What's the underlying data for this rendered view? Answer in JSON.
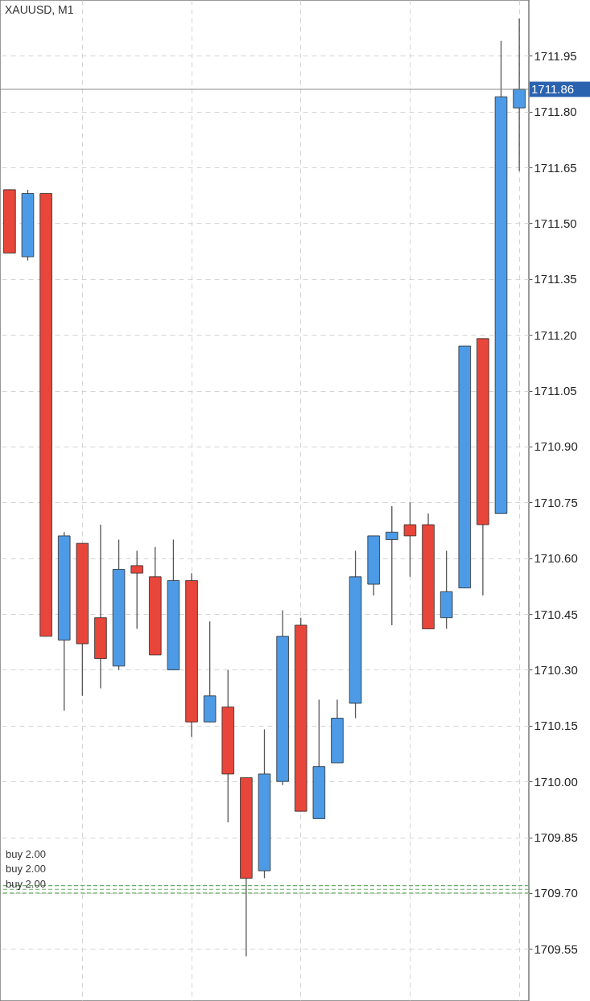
{
  "chart_data": {
    "type": "candlestick",
    "title": "XAUUSD, M1",
    "categories": [
      null,
      null,
      null,
      null,
      null,
      null,
      null,
      null,
      null,
      null,
      null,
      null,
      null,
      null,
      null,
      null,
      null,
      null,
      null,
      null,
      null,
      null,
      null,
      null,
      null,
      null,
      null,
      null,
      null
    ],
    "ohlc": [
      [
        1711.59,
        1711.59,
        1711.42,
        1711.42
      ],
      [
        1711.41,
        1711.59,
        1711.4,
        1711.58
      ],
      [
        1711.58,
        1711.58,
        1710.39,
        1710.39
      ],
      [
        1710.38,
        1710.67,
        1710.19,
        1710.66
      ],
      [
        1710.64,
        1710.64,
        1710.23,
        1710.37
      ],
      [
        1710.44,
        1710.69,
        1710.25,
        1710.33
      ],
      [
        1710.31,
        1710.65,
        1710.3,
        1710.57
      ],
      [
        1710.58,
        1710.62,
        1710.41,
        1710.56
      ],
      [
        1710.55,
        1710.63,
        1710.34,
        1710.34
      ],
      [
        1710.3,
        1710.65,
        1710.3,
        1710.54
      ],
      [
        1710.54,
        1710.56,
        1710.12,
        1710.16
      ],
      [
        1710.16,
        1710.43,
        1710.16,
        1710.23
      ],
      [
        1710.2,
        1710.3,
        1709.89,
        1710.02
      ],
      [
        1710.01,
        1710.01,
        1709.53,
        1709.74
      ],
      [
        1709.76,
        1710.14,
        1709.74,
        1710.02
      ],
      [
        1710.0,
        1710.46,
        1709.99,
        1710.39
      ],
      [
        1710.42,
        1710.44,
        1709.92,
        1709.92
      ],
      [
        1709.9,
        1710.22,
        1709.9,
        1710.04
      ],
      [
        1710.05,
        1710.22,
        1710.05,
        1710.17
      ],
      [
        1710.21,
        1710.62,
        1710.17,
        1710.55
      ],
      [
        1710.53,
        1710.66,
        1710.5,
        1710.66
      ],
      [
        1710.65,
        1710.74,
        1710.42,
        1710.67
      ],
      [
        1710.69,
        1710.75,
        1710.55,
        1710.66
      ],
      [
        1710.69,
        1710.72,
        1710.41,
        1710.41
      ],
      [
        1710.44,
        1710.62,
        1710.41,
        1710.51
      ],
      [
        1710.52,
        1711.17,
        1710.52,
        1711.17
      ],
      [
        1711.19,
        1711.19,
        1710.5,
        1710.69
      ],
      [
        1710.72,
        1711.99,
        1710.72,
        1711.84
      ],
      [
        1711.81,
        1712.05,
        1711.64,
        1711.86
      ]
    ],
    "colors": [
      "#e8463a",
      "#4d9be6",
      "#e8463a",
      "#4d9be6",
      "#e8463a",
      "#e8463a",
      "#4d9be6",
      "#e8463a",
      "#e8463a",
      "#4d9be6",
      "#e8463a",
      "#4d9be6",
      "#e8463a",
      "#e8463a",
      "#4d9be6",
      "#4d9be6",
      "#e8463a",
      "#4d9be6",
      "#4d9be6",
      "#4d9be6",
      "#4d9be6",
      "#4d9be6",
      "#e8463a",
      "#e8463a",
      "#4d9be6",
      "#4d9be6",
      "#e8463a",
      "#4d9be6",
      "#4d9be6"
    ],
    "ylim": [
      1709.41,
      1712.1
    ],
    "yticks": [
      {
        "value": 1709.55,
        "label": "1709.55"
      },
      {
        "value": 1709.7,
        "label": "1709.70"
      },
      {
        "value": 1709.85,
        "label": "1709.85"
      },
      {
        "value": 1710.0,
        "label": "1710.00"
      },
      {
        "value": 1710.15,
        "label": "1710.15"
      },
      {
        "value": 1710.3,
        "label": "1710.30"
      },
      {
        "value": 1710.45,
        "label": "1710.45"
      },
      {
        "value": 1710.6,
        "label": "1710.60"
      },
      {
        "value": 1710.75,
        "label": "1710.75"
      },
      {
        "value": 1710.9,
        "label": "1710.90"
      },
      {
        "value": 1711.05,
        "label": "1711.05"
      },
      {
        "value": 1711.2,
        "label": "1711.20"
      },
      {
        "value": 1711.35,
        "label": "1711.35"
      },
      {
        "value": 1711.5,
        "label": "1711.50"
      },
      {
        "value": 1711.65,
        "label": "1711.65"
      },
      {
        "value": 1711.8,
        "label": "1711.80"
      },
      {
        "value": 1711.95,
        "label": "1711.95"
      }
    ],
    "grid": true,
    "ref_lines": [
      {
        "axis": "y",
        "value": 1711.86,
        "label": "1711.86",
        "color": "#8a8a8a",
        "line_style": "solid"
      },
      {
        "axis": "y",
        "value": 1709.72,
        "label": "buy 2.00",
        "color": "#6aae6a",
        "line_style": "dashed"
      },
      {
        "axis": "y",
        "value": 1709.71,
        "label": "buy 2.00",
        "color": "#6aae6a",
        "line_style": "dashed"
      },
      {
        "axis": "y",
        "value": 1709.7,
        "label": "buy 2.00",
        "color": "#6aae6a",
        "line_style": "dashed"
      }
    ]
  }
}
